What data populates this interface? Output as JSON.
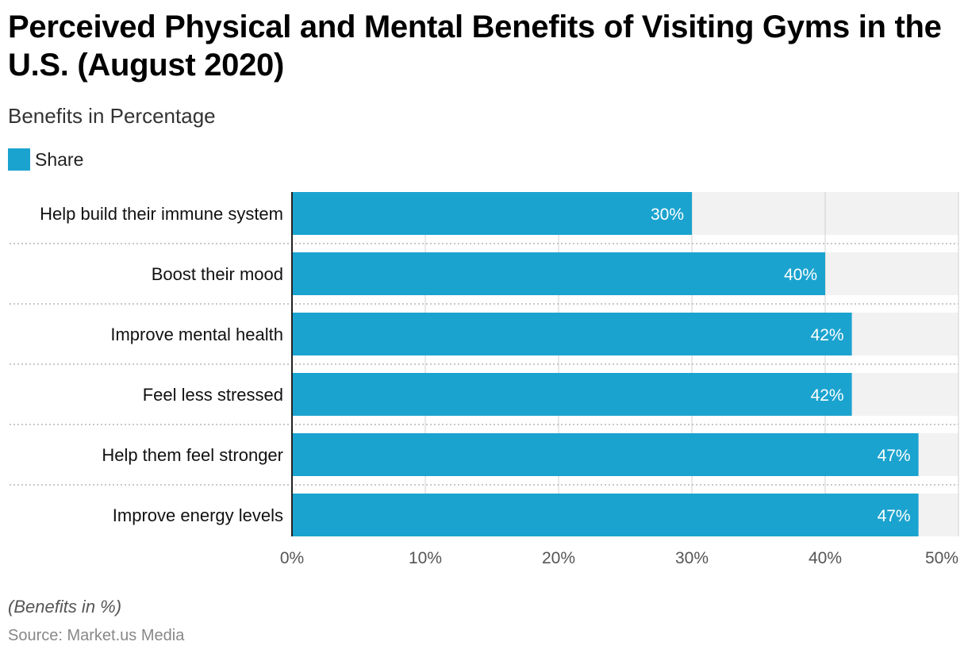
{
  "title": "Perceived Physical and Mental Benefits of Visiting Gyms in the U.S. (August 2020)",
  "subtitle": "Benefits in Percentage",
  "legend": {
    "label": "Share",
    "color": "#1ba3cf"
  },
  "footnote": "(Benefits in %)",
  "source": "Source: Market.us Media",
  "chart_data": {
    "type": "bar",
    "orientation": "horizontal",
    "categories": [
      "Help build their immune system",
      "Boost their mood",
      "Improve mental health",
      "Feel less stressed",
      "Help them feel stronger",
      "Improve energy levels"
    ],
    "series": [
      {
        "name": "Share",
        "values": [
          30,
          40,
          42,
          42,
          47,
          47
        ],
        "color": "#1ba3cf"
      }
    ],
    "data_labels": [
      "30%",
      "40%",
      "42%",
      "42%",
      "47%",
      "47%"
    ],
    "x_ticks": [
      "0%",
      "10%",
      "20%",
      "30%",
      "40%",
      "50%"
    ],
    "xlim": [
      0,
      50
    ],
    "grid": true,
    "legend_position": "top-left",
    "background_band_color": "#f2f2f2"
  }
}
